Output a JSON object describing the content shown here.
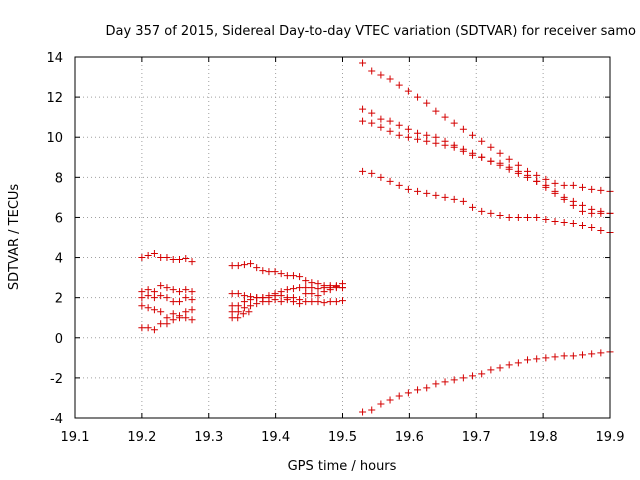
{
  "chart_data": {
    "type": "scatter",
    "title": "Day 357 of 2015, Sidereal Day-to-day VTEC variation (SDTVAR) for receiver samo",
    "xlabel": "GPS time / hours",
    "ylabel": "SDTVAR / TECUs",
    "xlim": [
      19.1,
      19.9
    ],
    "ylim": [
      -4,
      14
    ],
    "xticks": [
      "19.1",
      "19.2",
      "19.3",
      "19.4",
      "19.5",
      "19.6",
      "19.7",
      "19.8",
      "19.9"
    ],
    "yticks": [
      "-4",
      "-2",
      "0",
      "2",
      "4",
      "6",
      "8",
      "10",
      "12",
      "14"
    ],
    "grid": true,
    "color": "#cc0000",
    "series": [
      {
        "name": "s1",
        "segments": [
          {
            "x0": 19.2,
            "x1": 19.275,
            "y": [
              4.0,
              4.1,
              4.2,
              4.0,
              4.0,
              3.9,
              3.9,
              3.95,
              3.8
            ]
          },
          {
            "x0": 19.335,
            "x1": 19.5,
            "y": [
              3.6,
              3.6,
              3.65,
              3.7,
              3.5,
              3.35,
              3.3,
              3.3,
              3.2,
              3.1,
              3.1,
              3.05,
              2.85,
              2.75,
              2.7,
              2.6,
              2.6,
              2.55,
              2.5
            ]
          }
        ]
      },
      {
        "name": "s2",
        "segments": [
          {
            "x0": 19.2,
            "x1": 19.275,
            "y": [
              2.3,
              2.4,
              2.3,
              2.6,
              2.5,
              2.4,
              2.3,
              2.4,
              2.3
            ]
          },
          {
            "x0": 19.335,
            "x1": 19.5,
            "y": [
              2.2,
              2.2,
              2.1,
              2.05,
              2.0,
              2.0,
              2.1,
              2.2,
              2.3,
              2.4,
              2.45,
              2.5,
              2.5,
              2.5,
              2.45,
              2.5,
              2.5,
              2.6,
              2.7
            ]
          }
        ]
      },
      {
        "name": "s3",
        "segments": [
          {
            "x0": 19.2,
            "x1": 19.275,
            "y": [
              2.0,
              2.1,
              2.0,
              2.1,
              2.0,
              1.8,
              1.8,
              2.0,
              1.9
            ]
          },
          {
            "x0": 19.335,
            "x1": 19.5,
            "y": [
              1.6,
              1.6,
              1.8,
              1.9,
              2.0,
              2.0,
              2.0,
              2.1,
              2.1,
              2.0,
              2.0,
              1.9,
              2.2,
              2.2,
              2.1,
              2.3,
              2.4,
              2.5,
              2.5
            ]
          }
        ]
      },
      {
        "name": "s4",
        "segments": [
          {
            "x0": 19.2,
            "x1": 19.275,
            "y": [
              1.6,
              1.5,
              1.4,
              1.3,
              1.0,
              1.2,
              1.1,
              1.3,
              1.4
            ]
          },
          {
            "x0": 19.335,
            "x1": 19.5,
            "y": [
              1.3,
              1.3,
              1.5,
              1.6,
              1.7,
              1.8,
              1.8,
              1.9,
              1.8,
              1.9,
              1.8,
              1.7,
              1.8,
              1.8,
              1.8,
              1.75,
              1.8,
              1.8,
              1.85
            ]
          }
        ]
      },
      {
        "name": "s5",
        "segments": [
          {
            "x0": 19.2,
            "x1": 19.275,
            "y": [
              0.5,
              0.5,
              0.4,
              0.7,
              0.7,
              0.9,
              1.0,
              1.0,
              0.9
            ]
          },
          {
            "x0": 19.335,
            "x1": 19.36,
            "y": [
              1.0,
              1.0,
              1.2,
              1.3
            ]
          }
        ]
      },
      {
        "name": "s6",
        "segments": [
          {
            "x0": 19.53,
            "x1": 19.9,
            "y": [
              13.7,
              13.3,
              13.1,
              12.9,
              12.6,
              12.3,
              12.0,
              11.7,
              11.3,
              11.0,
              10.7,
              10.4,
              10.1,
              9.8,
              9.5,
              9.2,
              8.9,
              8.6,
              8.3,
              8.1,
              7.9,
              7.7,
              7.6,
              7.6,
              7.5,
              7.4,
              7.35,
              7.3
            ]
          }
        ]
      },
      {
        "name": "s7",
        "segments": [
          {
            "x0": 19.53,
            "x1": 19.9,
            "y": [
              11.4,
              11.2,
              10.9,
              10.8,
              10.6,
              10.4,
              10.2,
              10.1,
              10.0,
              9.8,
              9.6,
              9.4,
              9.2,
              9.0,
              8.8,
              8.6,
              8.4,
              8.2,
              8.0,
              7.8,
              7.6,
              7.3,
              7.0,
              6.8,
              6.6,
              6.4,
              6.3,
              6.2
            ]
          }
        ]
      },
      {
        "name": "s8",
        "segments": [
          {
            "x0": 19.53,
            "x1": 19.9,
            "y": [
              10.8,
              10.7,
              10.5,
              10.3,
              10.1,
              10.0,
              9.9,
              9.8,
              9.7,
              9.6,
              9.5,
              9.3,
              9.1,
              9.0,
              8.8,
              8.7,
              8.5,
              8.3,
              8.1,
              7.8,
              7.5,
              7.2,
              6.9,
              6.6,
              6.3,
              6.2,
              6.2,
              6.2
            ]
          }
        ]
      },
      {
        "name": "s9",
        "segments": [
          {
            "x0": 19.53,
            "x1": 19.9,
            "y": [
              8.3,
              8.2,
              8.0,
              7.8,
              7.6,
              7.4,
              7.3,
              7.2,
              7.1,
              7.0,
              6.9,
              6.8,
              6.5,
              6.3,
              6.2,
              6.1,
              6.0,
              6.0,
              6.0,
              6.0,
              5.9,
              5.8,
              5.75,
              5.7,
              5.6,
              5.5,
              5.35,
              5.25
            ]
          }
        ]
      },
      {
        "name": "s10",
        "segments": [
          {
            "x0": 19.53,
            "x1": 19.9,
            "y": [
              -3.7,
              -3.6,
              -3.3,
              -3.1,
              -2.9,
              -2.75,
              -2.6,
              -2.5,
              -2.3,
              -2.2,
              -2.1,
              -2.0,
              -1.9,
              -1.8,
              -1.6,
              -1.5,
              -1.35,
              -1.25,
              -1.1,
              -1.05,
              -1.0,
              -0.95,
              -0.9,
              -0.9,
              -0.85,
              -0.8,
              -0.75,
              -0.7
            ]
          }
        ]
      }
    ]
  }
}
